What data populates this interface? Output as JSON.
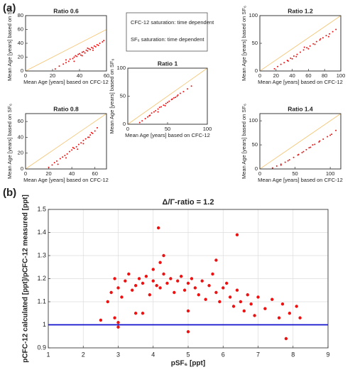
{
  "panel_labels": [
    "(a)",
    "(b)"
  ],
  "notes": [
    "CFC-12 saturation: time dependent",
    "SF₆ saturation: time dependent"
  ],
  "chart_data": [
    {
      "type": "scatter",
      "title": "Ratio 0.6",
      "x_label": "Mean Age [years] based on CFC-12",
      "y_label": "Mean Age [years] based on SF₆",
      "xlim": [
        0,
        60
      ],
      "ylim": [
        0,
        80
      ],
      "xticks": [
        0,
        20,
        40,
        60
      ],
      "yticks": [
        0,
        20,
        40,
        60,
        80
      ],
      "identity_line_color": "#f5c26b",
      "series": [
        {
          "color": "#ee1111",
          "x": [
            22,
            25,
            28,
            30,
            32,
            33,
            35,
            36,
            37,
            38,
            39,
            40,
            41,
            42,
            43,
            44,
            45,
            46,
            47,
            48,
            49,
            50,
            51,
            52,
            53,
            54,
            55,
            57,
            58,
            30,
            42,
            46,
            50,
            36
          ],
          "y": [
            3,
            7,
            10,
            12,
            14,
            17,
            18,
            20,
            22,
            21,
            24,
            25,
            23,
            27,
            28,
            26,
            30,
            29,
            32,
            31,
            34,
            33,
            36,
            35,
            38,
            37,
            40,
            42,
            44,
            16,
            22,
            33,
            30,
            14
          ]
        }
      ]
    },
    {
      "type": "scatter",
      "title": "Ratio 0.8",
      "x_label": "Mean Age [years] based on CFC-12",
      "y_label": "Mean Age [years] based on SF₆",
      "xlim": [
        0,
        70
      ],
      "ylim": [
        0,
        70
      ],
      "xticks": [
        0,
        20,
        40,
        60
      ],
      "yticks": [
        0,
        20,
        40,
        60
      ],
      "identity_line_color": "#f5c26b",
      "series": [
        {
          "color": "#ee1111",
          "x": [
            20,
            23,
            25,
            27,
            30,
            32,
            34,
            36,
            38,
            40,
            42,
            44,
            46,
            48,
            50,
            52,
            54,
            56,
            58,
            60,
            62,
            35,
            45,
            55,
            28,
            50,
            41,
            57
          ],
          "y": [
            2,
            5,
            8,
            10,
            13,
            15,
            17,
            19,
            22,
            24,
            26,
            28,
            31,
            33,
            36,
            38,
            40,
            43,
            45,
            48,
            52,
            14,
            25,
            40,
            6,
            32,
            27,
            46
          ]
        }
      ]
    },
    {
      "type": "scatter",
      "title": "Ratio 1",
      "x_label": "Mean Age [years] based on CFC-12",
      "y_label": "Mean Age [years] based on SF₆",
      "xlim": [
        0,
        100
      ],
      "ylim": [
        0,
        100
      ],
      "xticks": [
        0,
        50,
        100
      ],
      "yticks": [
        0,
        50,
        100
      ],
      "identity_line_color": "#f5c26b",
      "series": [
        {
          "color": "#ee1111",
          "x": [
            15,
            18,
            22,
            25,
            28,
            30,
            33,
            35,
            38,
            40,
            42,
            45,
            48,
            50,
            52,
            55,
            58,
            60,
            63,
            66,
            70,
            75,
            80,
            38,
            47,
            56,
            27,
            62
          ],
          "y": [
            3,
            6,
            10,
            13,
            16,
            20,
            22,
            24,
            27,
            30,
            31,
            34,
            37,
            39,
            41,
            44,
            47,
            48,
            52,
            55,
            58,
            63,
            68,
            22,
            33,
            45,
            15,
            50
          ]
        }
      ]
    },
    {
      "type": "scatter",
      "title": "Ratio 1.2",
      "x_label": "Mean Age [years] based on CFC-12",
      "y_label": "Mean Age [years] based on SF₆",
      "xlim": [
        0,
        100
      ],
      "ylim": [
        0,
        100
      ],
      "xticks": [
        0,
        20,
        40,
        60,
        80,
        100
      ],
      "yticks": [
        0,
        50,
        100
      ],
      "identity_line_color": "#f5c26b",
      "series": [
        {
          "color": "#ee1111",
          "x": [
            18,
            22,
            26,
            30,
            34,
            38,
            42,
            46,
            50,
            54,
            58,
            62,
            66,
            70,
            74,
            78,
            82,
            86,
            90,
            94,
            45,
            60,
            75,
            35,
            55,
            68,
            85,
            40
          ],
          "y": [
            4,
            8,
            12,
            15,
            19,
            23,
            27,
            30,
            34,
            38,
            42,
            45,
            49,
            53,
            56,
            60,
            64,
            67,
            71,
            75,
            26,
            40,
            58,
            18,
            43,
            48,
            62,
            22
          ]
        }
      ]
    },
    {
      "type": "scatter",
      "title": "Ratio 1.4",
      "x_label": "Mean Age [years] based on CFC-12",
      "y_label": "Mean Age [years] based on SF₆",
      "xlim": [
        0,
        115
      ],
      "ylim": [
        0,
        115
      ],
      "xticks": [
        0,
        50,
        100
      ],
      "yticks": [
        0,
        50,
        100
      ],
      "identity_line_color": "#f5c26b",
      "series": [
        {
          "color": "#ee1111",
          "x": [
            18,
            24,
            30,
            36,
            42,
            48,
            54,
            60,
            66,
            72,
            78,
            84,
            90,
            96,
            102,
            108,
            40,
            55,
            70,
            85,
            100,
            30,
            62,
            75
          ],
          "y": [
            2,
            6,
            10,
            14,
            19,
            24,
            29,
            34,
            40,
            45,
            51,
            56,
            62,
            67,
            72,
            80,
            17,
            30,
            44,
            58,
            70,
            8,
            36,
            50
          ]
        }
      ]
    },
    {
      "type": "scatter",
      "title": "Δ/Γ-ratio = 1.2",
      "x_label": "pSF₆ [ppt]",
      "y_label": "pCFC-12 calculated [ppt]/pCFC-12 measured [ppt]",
      "xlim": [
        1,
        9
      ],
      "ylim": [
        0.9,
        1.5
      ],
      "xticks": [
        1,
        2,
        3,
        4,
        5,
        6,
        7,
        8,
        9
      ],
      "yticks": [
        0.9,
        1,
        1.1,
        1.2,
        1.3,
        1.4,
        1.5
      ],
      "grid": true,
      "hline": {
        "y": 1,
        "color": "#1010cc"
      },
      "series": [
        {
          "color": "#ee1111",
          "x": [
            2.5,
            2.7,
            2.8,
            2.9,
            3.0,
            3.0,
            3.1,
            3.2,
            3.3,
            3.4,
            3.5,
            3.5,
            3.6,
            3.7,
            3.8,
            3.9,
            4.0,
            4.0,
            4.1,
            4.2,
            4.2,
            4.3,
            4.4,
            4.5,
            4.6,
            4.7,
            4.8,
            4.9,
            5.0,
            5.0,
            5.1,
            5.2,
            5.3,
            5.4,
            5.5,
            5.6,
            5.7,
            5.8,
            5.9,
            6.0,
            6.1,
            6.2,
            6.3,
            6.4,
            6.5,
            6.6,
            6.7,
            6.8,
            6.9,
            7.0,
            7.2,
            7.4,
            7.6,
            7.7,
            7.9,
            8.1,
            8.2,
            4.15,
            4.3,
            6.4,
            5.8,
            3.7,
            5.0,
            7.8,
            3.0,
            2.9
          ],
          "y": [
            1.02,
            1.1,
            1.14,
            1.2,
            1.16,
            1.01,
            1.12,
            1.19,
            1.22,
            1.15,
            1.17,
            1.05,
            1.2,
            1.18,
            1.21,
            1.13,
            1.19,
            1.24,
            1.17,
            1.16,
            1.27,
            1.22,
            1.18,
            1.2,
            1.14,
            1.19,
            1.21,
            1.15,
            1.18,
            1.06,
            1.2,
            1.16,
            1.13,
            1.19,
            1.11,
            1.17,
            1.22,
            1.14,
            1.1,
            1.16,
            1.18,
            1.12,
            1.08,
            1.15,
            1.1,
            1.06,
            1.13,
            1.09,
            1.04,
            1.12,
            1.07,
            1.11,
            1.03,
            1.09,
            1.05,
            1.08,
            1.03,
            1.42,
            1.3,
            1.39,
            1.28,
            1.05,
            0.97,
            0.94,
            0.99,
            1.03
          ]
        }
      ]
    }
  ]
}
